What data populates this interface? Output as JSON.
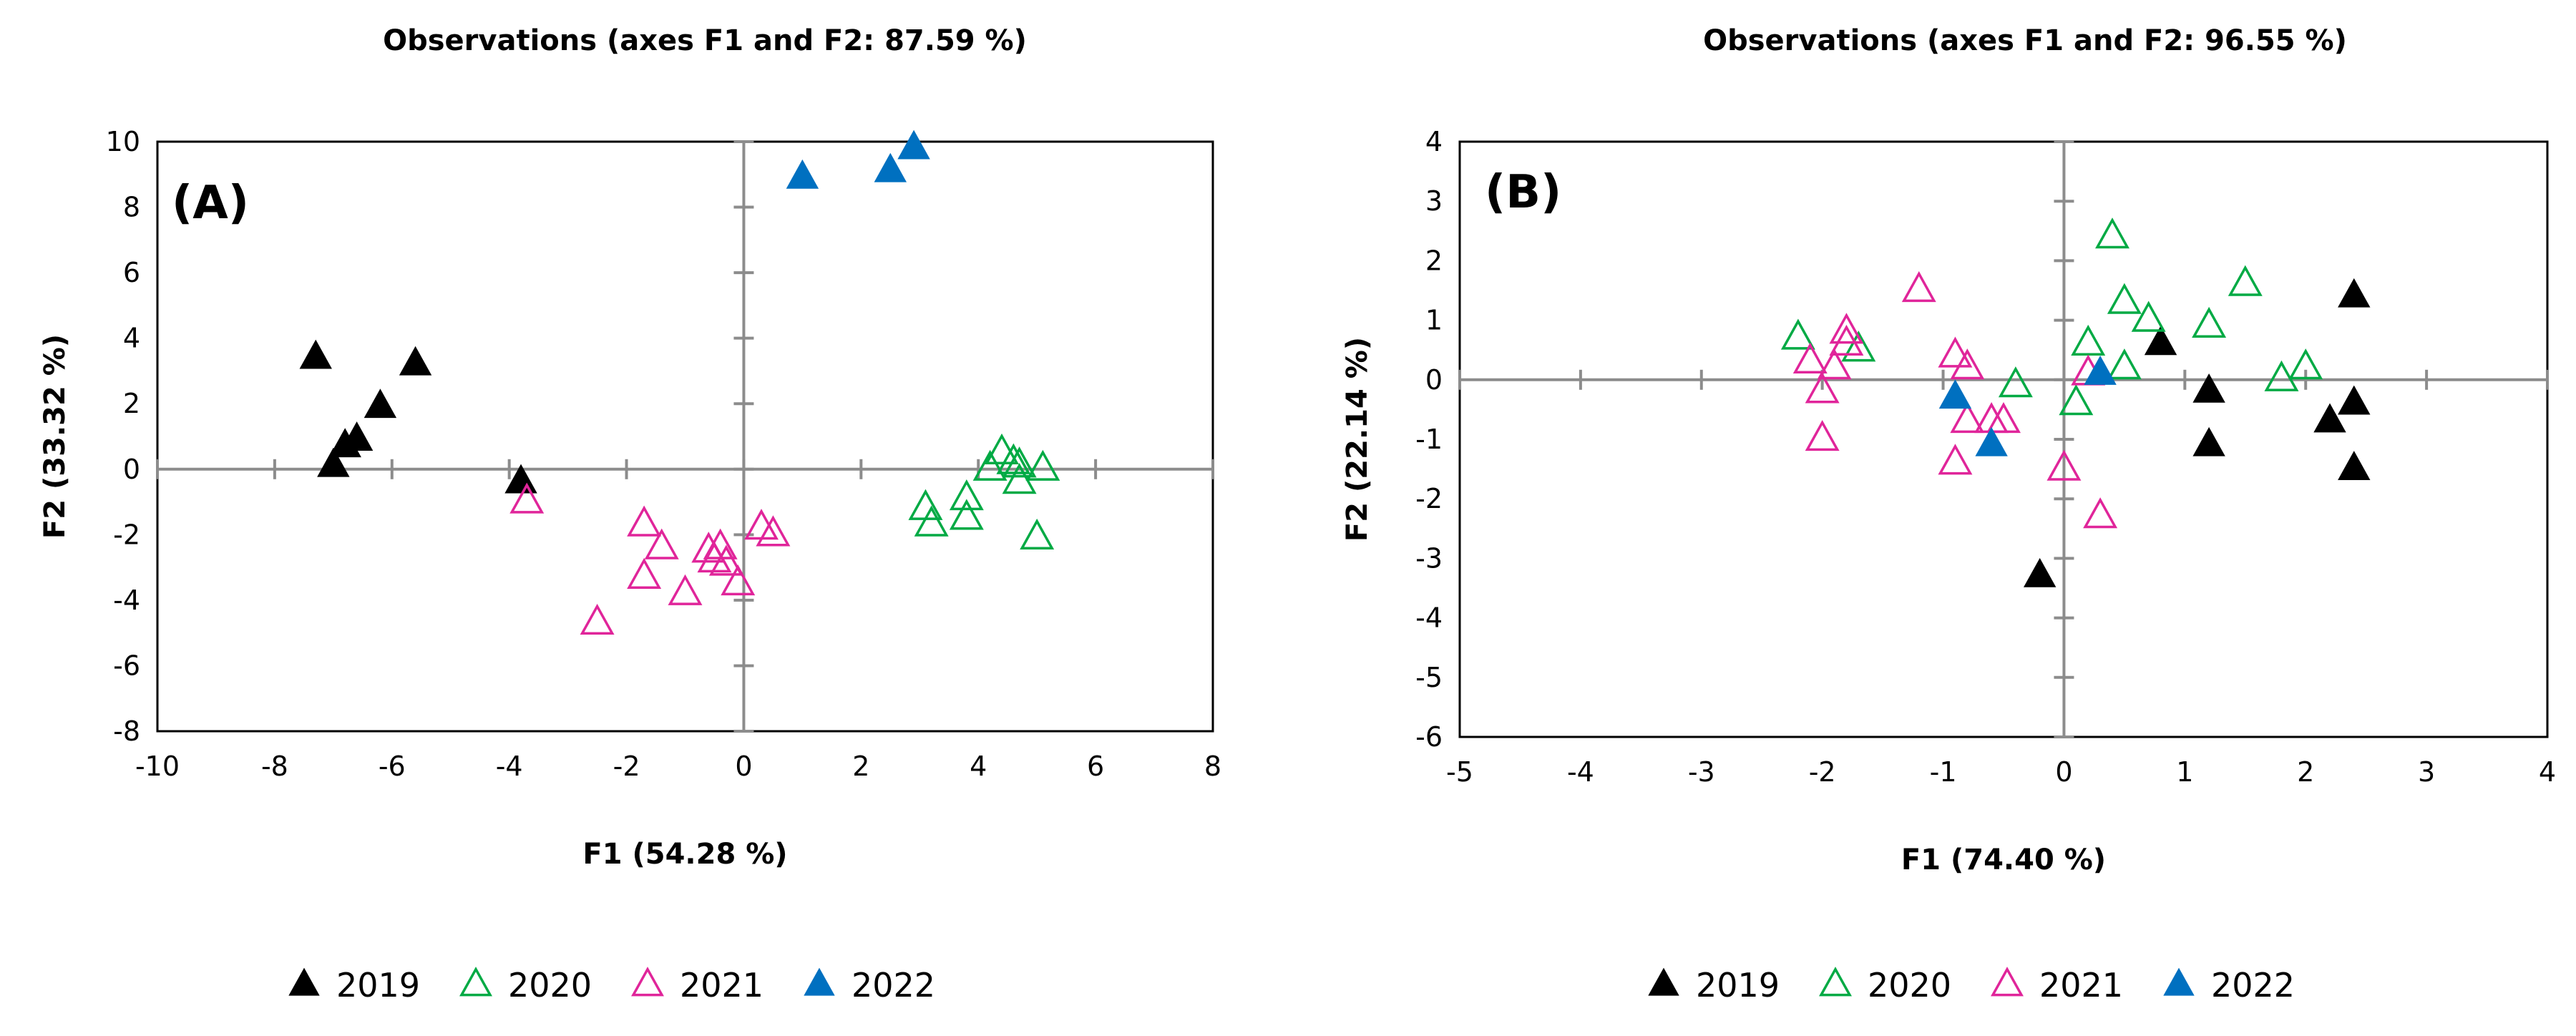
{
  "chart_data": [
    {
      "type": "scatter",
      "title": "Observations (axes F1 and F2: 87.59 %)",
      "panel_label": "(A)",
      "xlabel": "F1 (54.28 %)",
      "ylabel": "F2 (33.32 %)",
      "xlim": [
        -10,
        8
      ],
      "ylim": [
        -8,
        10
      ],
      "xticks": [
        -10,
        -8,
        -6,
        -4,
        -2,
        0,
        2,
        4,
        6,
        8
      ],
      "yticks": [
        -8,
        -6,
        -4,
        -2,
        0,
        2,
        4,
        6,
        8,
        10
      ],
      "legend_position": "bottom",
      "series": [
        {
          "name": "2019",
          "marker": "filled-triangle",
          "color": "#000000",
          "points": [
            [
              -7.3,
              3.4
            ],
            [
              -5.6,
              3.2
            ],
            [
              -6.2,
              1.9
            ],
            [
              -6.6,
              0.9
            ],
            [
              -6.8,
              0.7
            ],
            [
              -7.0,
              0.1
            ],
            [
              -3.8,
              -0.4
            ]
          ]
        },
        {
          "name": "2020",
          "marker": "open-triangle",
          "color": "#00AA44",
          "points": [
            [
              4.4,
              0.5
            ],
            [
              4.2,
              0.0
            ],
            [
              4.6,
              0.2
            ],
            [
              4.7,
              0.1
            ],
            [
              5.1,
              0.0
            ],
            [
              4.7,
              -0.4
            ],
            [
              3.8,
              -0.9
            ],
            [
              3.1,
              -1.2
            ],
            [
              3.2,
              -1.7
            ],
            [
              3.8,
              -1.5
            ],
            [
              5.0,
              -2.1
            ]
          ]
        },
        {
          "name": "2021",
          "marker": "open-triangle",
          "color": "#E0259A",
          "points": [
            [
              -3.7,
              -1.0
            ],
            [
              -1.7,
              -1.7
            ],
            [
              -1.4,
              -2.4
            ],
            [
              -1.7,
              -3.3
            ],
            [
              -1.0,
              -3.8
            ],
            [
              -2.5,
              -4.7
            ],
            [
              -0.6,
              -2.5
            ],
            [
              -0.4,
              -2.4
            ],
            [
              -0.5,
              -2.8
            ],
            [
              -0.3,
              -2.9
            ],
            [
              -0.1,
              -3.5
            ],
            [
              0.3,
              -1.8
            ],
            [
              0.5,
              -2.0
            ]
          ]
        },
        {
          "name": "2022",
          "marker": "filled-triangle",
          "color": "#0070C0",
          "points": [
            [
              1.0,
              8.9
            ],
            [
              2.5,
              9.1
            ],
            [
              2.9,
              9.8
            ]
          ]
        }
      ]
    },
    {
      "type": "scatter",
      "title": "Observations (axes F1 and F2: 96.55 %)",
      "panel_label": "(B)",
      "xlabel": "F1 (74.40 %)",
      "ylabel": "F2 (22.14 %)",
      "xlim": [
        -5,
        4
      ],
      "ylim": [
        -6,
        4
      ],
      "xticks": [
        -5,
        -4,
        -3,
        -2,
        -1,
        0,
        1,
        2,
        3,
        4
      ],
      "yticks": [
        -6,
        -5,
        -4,
        -3,
        -2,
        -1,
        0,
        1,
        2,
        3,
        4
      ],
      "legend_position": "bottom",
      "series": [
        {
          "name": "2019",
          "marker": "filled-triangle",
          "color": "#000000",
          "points": [
            [
              0.8,
              0.6
            ],
            [
              2.4,
              1.4
            ],
            [
              1.2,
              -0.2
            ],
            [
              2.4,
              -0.4
            ],
            [
              2.2,
              -0.7
            ],
            [
              1.2,
              -1.1
            ],
            [
              2.4,
              -1.5
            ],
            [
              -0.2,
              -3.3
            ]
          ]
        },
        {
          "name": "2020",
          "marker": "open-triangle",
          "color": "#00AA44",
          "points": [
            [
              -2.2,
              0.7
            ],
            [
              -1.7,
              0.5
            ],
            [
              -0.4,
              -0.1
            ],
            [
              0.1,
              -0.4
            ],
            [
              0.2,
              0.6
            ],
            [
              0.4,
              2.4
            ],
            [
              0.5,
              1.3
            ],
            [
              0.5,
              0.2
            ],
            [
              0.7,
              1.0
            ],
            [
              1.2,
              0.9
            ],
            [
              1.5,
              1.6
            ],
            [
              1.8,
              0.0
            ],
            [
              2.0,
              0.2
            ]
          ]
        },
        {
          "name": "2021",
          "marker": "open-triangle",
          "color": "#E0259A",
          "points": [
            [
              -1.2,
              1.5
            ],
            [
              -1.8,
              0.8
            ],
            [
              -1.8,
              0.6
            ],
            [
              -2.1,
              0.3
            ],
            [
              -1.9,
              0.2
            ],
            [
              -2.0,
              -0.2
            ],
            [
              -2.0,
              -1.0
            ],
            [
              -0.9,
              0.4
            ],
            [
              -0.8,
              0.2
            ],
            [
              -0.8,
              -0.7
            ],
            [
              -0.6,
              -0.7
            ],
            [
              -0.5,
              -0.7
            ],
            [
              -0.9,
              -1.4
            ],
            [
              0.0,
              -1.5
            ],
            [
              0.3,
              -2.3
            ],
            [
              0.2,
              0.1
            ]
          ]
        },
        {
          "name": "2022",
          "marker": "filled-triangle",
          "color": "#0070C0",
          "points": [
            [
              -0.9,
              -0.3
            ],
            [
              -0.6,
              -1.1
            ],
            [
              0.3,
              0.1
            ]
          ]
        }
      ]
    }
  ]
}
